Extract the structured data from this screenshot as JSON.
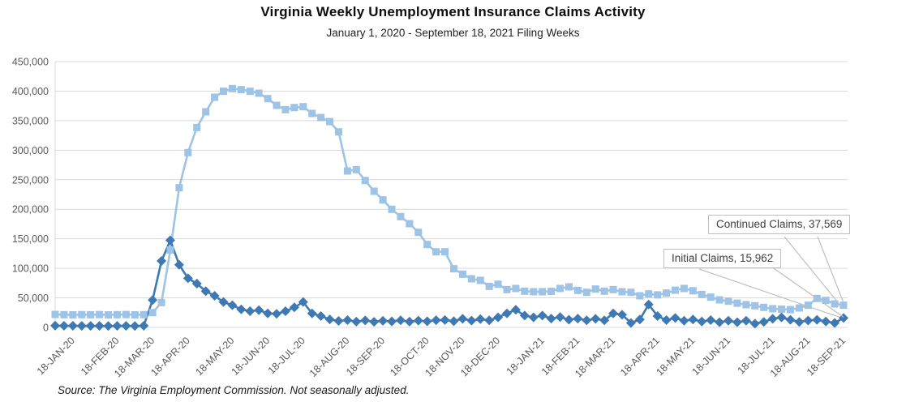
{
  "header": {
    "title": "Virginia Weekly Unemployment Insurance Claims Activity",
    "subtitle": "January 1, 2020 - September 18, 2021 Filing Weeks"
  },
  "annotations": {
    "continued_label": "Continued Claims, 37,569",
    "initial_label": "Initial Claims, 15,962"
  },
  "footer": {
    "source": "Source: The Virginia Employment Commission. Not seasonally adjusted."
  },
  "colors": {
    "continued_series": "#9DC3E6",
    "initial_series": "#3E79B4",
    "gridline": "#D9D9D9",
    "axis_label": "#595959",
    "callout_border": "#BFBFBF",
    "callout_text": "#404040",
    "leader_line": "#BFBFBF"
  },
  "chart_data": {
    "type": "line",
    "title": "Virginia Weekly Unemployment Insurance Claims Activity",
    "subtitle": "January 1, 2020 - September 18, 2021 Filing Weeks",
    "grid": true,
    "n_points": 90,
    "y_axis": {
      "min": 0,
      "max": 450000,
      "step": 50000,
      "tick_labels": [
        "0",
        "50,000",
        "100,000",
        "150,000",
        "200,000",
        "250,000",
        "300,000",
        "350,000",
        "400,000",
        "450,000"
      ]
    },
    "x_axis": {
      "tick_labels": [
        "18-JAN-20",
        "18-FEB-20",
        "18-MAR-20",
        "18-APR-20",
        "18-MAY-20",
        "18-JUN-20",
        "18-JUL-20",
        "18-AUG-20",
        "18-SEP-20",
        "18-OCT-20",
        "18-NOV-20",
        "18-DEC-20",
        "18-JAN-21",
        "18-FEB-21",
        "18-MAR-21",
        "18-APR-21",
        "18-MAY-21",
        "18-JUN-21",
        "18-JUL-21",
        "18-AUG-21",
        "18-SEP-21"
      ],
      "tick_indices": [
        2,
        7,
        11,
        15,
        20,
        24,
        28,
        33,
        37,
        42,
        46,
        50,
        55,
        59,
        63,
        68,
        72,
        76,
        81,
        85,
        89
      ]
    },
    "series": [
      {
        "name": "Continued Claims",
        "marker": "square",
        "color": "#9DC3E6",
        "final_value": 37569,
        "values": [
          21900,
          21500,
          21300,
          21600,
          21400,
          21700,
          21200,
          21500,
          21800,
          21300,
          21500,
          25000,
          42000,
          131000,
          236400,
          295900,
          338400,
          365000,
          389600,
          399800,
          404300,
          402400,
          399700,
          396500,
          387300,
          375900,
          368600,
          372200,
          373600,
          362200,
          355300,
          348400,
          331000,
          264800,
          267000,
          248700,
          230500,
          215800,
          199900,
          187500,
          175600,
          161000,
          140300,
          128000,
          128000,
          99200,
          90100,
          82300,
          79600,
          69500,
          73100,
          64000,
          65900,
          61300,
          60400,
          60400,
          61000,
          65900,
          68600,
          62700,
          59400,
          64900,
          61300,
          64000,
          60400,
          59400,
          53500,
          56700,
          55000,
          58100,
          63000,
          65900,
          62000,
          55800,
          51200,
          46600,
          44300,
          41000,
          38400,
          36600,
          33900,
          31600,
          30900,
          30000,
          32900,
          37500,
          49000,
          45700,
          39800,
          37569
        ]
      },
      {
        "name": "Initial Claims",
        "marker": "diamond",
        "color": "#3E79B4",
        "final_value": 15962,
        "values": [
          3000,
          2800,
          2700,
          2600,
          2500,
          2600,
          2400,
          2500,
          2600,
          2400,
          2700,
          46300,
          112500,
          147400,
          106000,
          83200,
          74000,
          61300,
          53500,
          43000,
          37500,
          30600,
          27400,
          29200,
          23700,
          22900,
          27400,
          33900,
          43000,
          23700,
          19200,
          13500,
          11000,
          12300,
          9800,
          11800,
          9500,
          11200,
          10200,
          12000,
          9800,
          11500,
          10300,
          12200,
          12500,
          10500,
          14500,
          11500,
          14000,
          12000,
          17000,
          23700,
          29800,
          20000,
          17000,
          20000,
          15000,
          17500,
          13000,
          15000,
          12000,
          14500,
          12000,
          23700,
          21500,
          7500,
          13300,
          38800,
          19200,
          12300,
          16000,
          11400,
          13300,
          10000,
          12300,
          8700,
          11400,
          8700,
          11400,
          6400,
          9300,
          14500,
          17000,
          12800,
          9300,
          11700,
          12800,
          10000,
          7500,
          15962
        ]
      }
    ]
  }
}
